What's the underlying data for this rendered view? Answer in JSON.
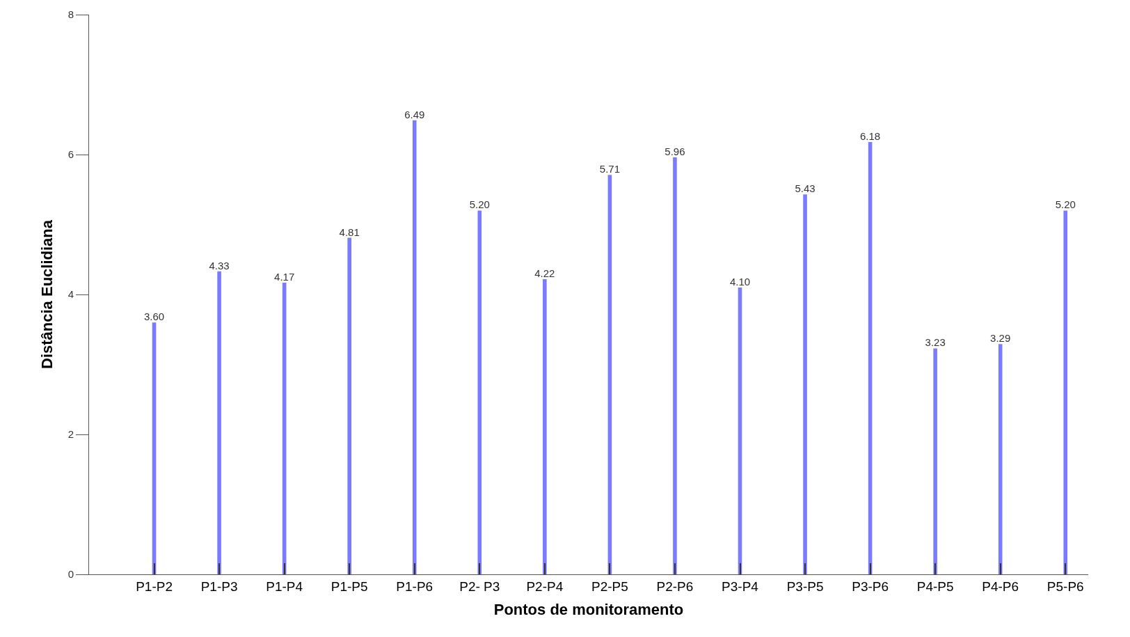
{
  "chart_data": {
    "type": "bar",
    "xlabel": "Pontos de monitoramento",
    "ylabel": "Distância Euclidiana",
    "categories": [
      "P1-P2",
      "P1-P3",
      "P1-P4",
      "P1-P5",
      "P1-P6",
      "P2- P3",
      "P2-P4",
      "P2-P5",
      "P2-P6",
      "P3-P4",
      "P3-P5",
      "P3-P6",
      "P4-P5",
      "P4-P6",
      "P5-P6"
    ],
    "values": [
      3.6,
      4.33,
      4.17,
      4.81,
      6.49,
      5.2,
      4.22,
      5.71,
      5.96,
      4.1,
      5.43,
      6.18,
      3.23,
      3.29,
      5.2
    ],
    "value_labels": [
      "3.60",
      "4.33",
      "4.17",
      "4.81",
      "6.49",
      "5.20",
      "4.22",
      "5.71",
      "5.96",
      "4.10",
      "5.43",
      "6.18",
      "3.23",
      "3.29",
      "5.20"
    ],
    "color": "#7b7bff",
    "ylim": [
      0,
      8
    ],
    "yticks": [
      0,
      2,
      4,
      6,
      8
    ],
    "legend": false
  }
}
